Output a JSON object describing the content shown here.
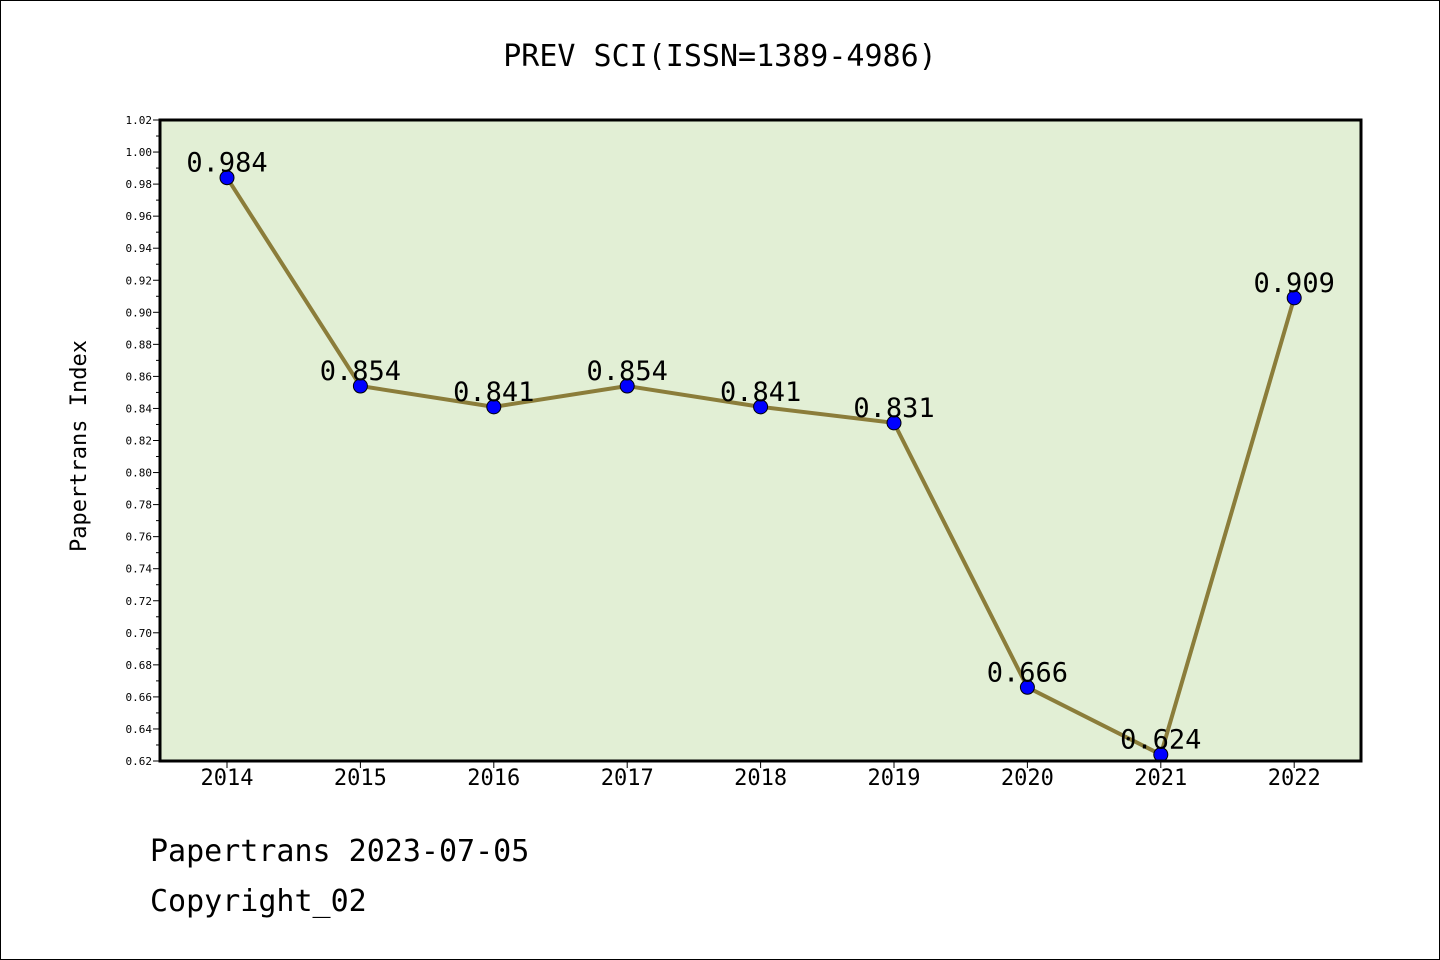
{
  "chart_data": {
    "type": "line",
    "title": "PREV SCI(ISSN=1389-4986)",
    "xlabel": "",
    "ylabel": "Papertrans Index",
    "categories": [
      "2014",
      "2015",
      "2016",
      "2017",
      "2018",
      "2019",
      "2020",
      "2021",
      "2022"
    ],
    "series": [
      {
        "name": "Papertrans Index",
        "values": [
          0.984,
          0.854,
          0.841,
          0.854,
          0.841,
          0.831,
          0.666,
          0.624,
          0.909
        ],
        "labels": [
          "0.984",
          "0.854",
          "0.841",
          "0.854",
          "0.841",
          "0.831",
          "0.666",
          "0.624",
          "0.909"
        ]
      }
    ],
    "ylim": [
      0.62,
      1.02
    ],
    "yticks": [
      "0.62",
      "0.64",
      "0.66",
      "0.68",
      "0.70",
      "0.72",
      "0.74",
      "0.76",
      "0.78",
      "0.80",
      "0.82",
      "0.84",
      "0.86",
      "0.88",
      "0.90",
      "0.92",
      "0.94",
      "0.96",
      "0.98",
      "1.00",
      "1.02"
    ],
    "grid": false,
    "colors": {
      "plot_background": "#e2efd5",
      "line": "#8b7d3a",
      "marker": "#0000ff"
    }
  },
  "footer": {
    "date_line": "Papertrans 2023-07-05",
    "copyright_line": "Copyright_02"
  }
}
